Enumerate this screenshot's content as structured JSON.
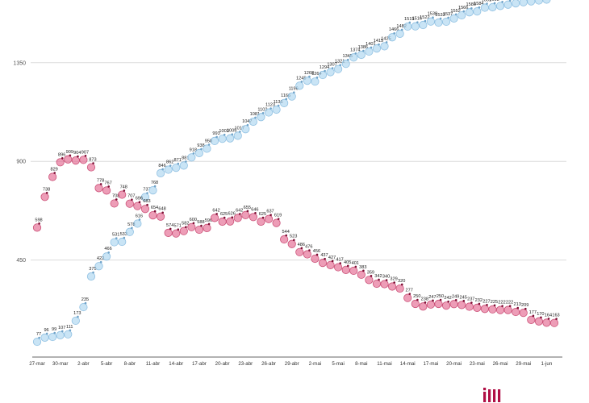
{
  "chart_data": {
    "type": "scatter",
    "title": "",
    "xlabel": "",
    "ylabel": "",
    "grid": "horizontal",
    "legend": "none",
    "ylim": [
      0,
      1650
    ],
    "y_ticks": [
      450,
      900,
      1350
    ],
    "x_tick_labels": [
      "27-mar",
      "30-mar",
      "2-abr",
      "5-abr",
      "8-abr",
      "11-abr",
      "14-abr",
      "17-abr",
      "20-abr",
      "23-abr",
      "26-abr",
      "29-abr",
      "2-mai",
      "5-mai",
      "8-mai",
      "11-mai",
      "14-mai",
      "17-mai",
      "20-mai",
      "23-mai",
      "26-mai",
      "29-mai",
      "1-jun"
    ],
    "points_per_tick": 3,
    "series": [
      {
        "name": "blue-series",
        "fill_color": "#a8d3ef",
        "stroke_color": "#82b9de",
        "dot_color": "#6fa3c9",
        "label_color": "#222222",
        "values": [
          77,
          96,
          99,
          107,
          111,
          173,
          235,
          375,
          422,
          466,
          531,
          533,
          578,
          616,
          737,
          768,
          846,
          862,
          871,
          881,
          918,
          938,
          958,
          993,
          1003,
          1005,
          1017,
          1047,
          1081,
          1102,
          1123,
          1136,
          1166,
          1196,
          1245,
          1268,
          1264,
          1294,
          1307,
          1321,
          1345,
          1374,
          1386,
          1401,
          1415,
          1425,
          1466,
          1482,
          1515,
          1516,
          1522,
          1538,
          1533,
          1537,
          1552,
          1566,
          1580,
          1584,
          1601,
          1603,
          1609,
          1615,
          1621,
          1626,
          1630,
          1634,
          1638
        ]
      },
      {
        "name": "pink-series",
        "fill_color": "#e2618b",
        "stroke_color": "#c43e68",
        "dot_color": "#7d0d33",
        "label_color": "#1a1a1a",
        "values": [
          598,
          738,
          829,
          896,
          909,
          904,
          907,
          873,
          778,
          767,
          708,
          748,
          707,
          696,
          683,
          654,
          648,
          574,
          571,
          582,
          600,
          588,
          596,
          642,
          625,
          626,
          642,
          655,
          646,
          625,
          637,
          619,
          544,
          523,
          486,
          476,
          456,
          437,
          427,
          417,
          405,
          401,
          383,
          359,
          342,
          340,
          329,
          320,
          277,
          250,
          238,
          247,
          250,
          242,
          249,
          245,
          237,
          232,
          227,
          225,
          222,
          222,
          213,
          209,
          177,
          170,
          164,
          163
        ]
      }
    ],
    "axis_color": "#666666",
    "gridline_color": "#dcdcdc",
    "tick_label_color": "#333333",
    "y_label_color": "#555555"
  },
  "logo": {
    "name": "publisher-logo",
    "color": "#b00e44"
  }
}
